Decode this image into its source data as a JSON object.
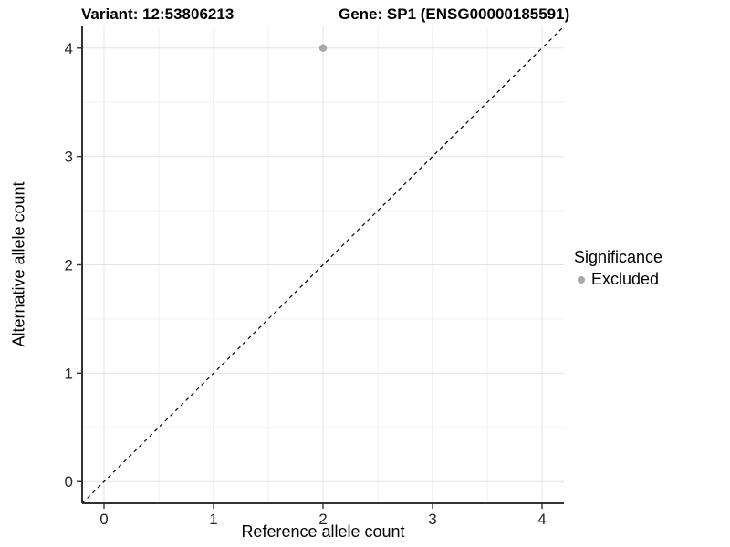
{
  "header": {
    "variant_title": "Variant: 12:53806213",
    "gene_title": "Gene: SP1 (ENSG00000185591)"
  },
  "chart_data": {
    "type": "scatter",
    "title_left": "Variant: 12:53806213",
    "title_right": "Gene: SP1 (ENSG00000185591)",
    "xlabel": "Reference allele count",
    "ylabel": "Alternative allele count",
    "xlim": [
      -0.2,
      4.2
    ],
    "ylim": [
      -0.2,
      4.2
    ],
    "x_ticks": [
      0,
      1,
      2,
      3,
      4
    ],
    "y_ticks": [
      0,
      1,
      2,
      3,
      4
    ],
    "minor_step": 0.5,
    "grid": {
      "show_major": true,
      "show_minor": true,
      "major_color": "#e4e4e4",
      "minor_color": "#f1f1f1"
    },
    "axis_color": "#333333",
    "identity_line": {
      "slope": 1,
      "intercept": 0,
      "style": "dashed",
      "color": "#000000"
    },
    "series": [
      {
        "name": "Excluded",
        "color": "#a9a9a9",
        "points": [
          [
            2,
            4
          ]
        ]
      }
    ],
    "legend": {
      "title": "Significance",
      "position": "right",
      "items": [
        {
          "label": "Excluded",
          "color": "#a9a9a9",
          "marker": "circle"
        }
      ]
    }
  }
}
